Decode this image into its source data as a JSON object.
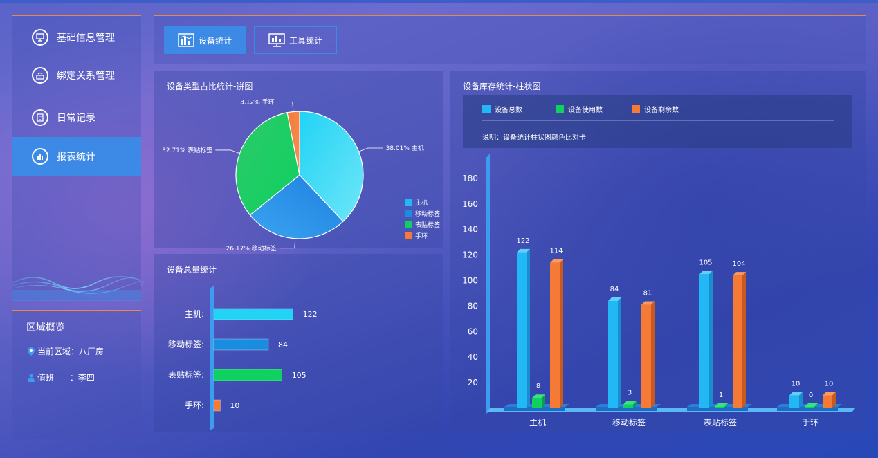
{
  "sidebar": {
    "items": [
      {
        "label": "基础信息管理",
        "icon": "monitor-icon"
      },
      {
        "label": "绑定关系管理",
        "icon": "router-icon"
      },
      {
        "label": "日常记录",
        "icon": "document-icon"
      },
      {
        "label": "报表统计",
        "icon": "bar-chart-icon",
        "active": true
      }
    ]
  },
  "region": {
    "title": "区域概览",
    "current_area": "当前区域：八厂房",
    "duty": "值班      ：李四"
  },
  "toolbar": {
    "device_stats": "设备统计",
    "tool_stats": "工具统计"
  },
  "colors": {
    "accent": "#3d8ae6",
    "cyan": "#22d3f5",
    "blue": "#1b8de0",
    "green": "#0fd160",
    "orange": "#f47a35"
  },
  "pie": {
    "title": "设备类型占比统计-饼图",
    "legend": [
      "主机",
      "移动标签",
      "表贴标签",
      "手环"
    ]
  },
  "hbar": {
    "title": "设备总量统计",
    "labels": [
      "主机:",
      "移动标签:",
      "表贴标签:",
      "手环:"
    ]
  },
  "vbar": {
    "title": "设备库存统计-柱状图",
    "legend": [
      "设备总数",
      "设备使用数",
      "设备剩余数"
    ],
    "note": "说明：设备统计柱状图颜色比对卡"
  },
  "chart_data": [
    {
      "type": "pie",
      "title": "设备类型占比统计-饼图",
      "categories": [
        "主机",
        "移动标签",
        "表贴标签",
        "手环"
      ],
      "values": [
        38.01,
        26.17,
        32.71,
        3.12
      ],
      "labels": [
        "38.01% 主机",
        "26.17% 移动标签",
        "32.71% 表贴标签",
        "3.12% 手环"
      ],
      "legend_position": "bottom-right"
    },
    {
      "type": "bar",
      "orientation": "horizontal",
      "title": "设备总量统计",
      "categories": [
        "主机",
        "移动标签",
        "表贴标签",
        "手环"
      ],
      "values": [
        122,
        84,
        105,
        10
      ]
    },
    {
      "type": "bar",
      "title": "设备库存统计-柱状图",
      "categories": [
        "主机",
        "移动标签",
        "表贴标签",
        "手环"
      ],
      "series": [
        {
          "name": "设备总数",
          "values": [
            122,
            84,
            105,
            10
          ]
        },
        {
          "name": "设备使用数",
          "values": [
            8,
            3,
            1,
            0
          ]
        },
        {
          "name": "设备剩余数",
          "values": [
            114,
            81,
            104,
            10
          ]
        }
      ],
      "yticks": [
        20,
        40,
        60,
        80,
        100,
        120,
        140,
        160,
        180
      ],
      "ylim": [
        0,
        190
      ]
    }
  ]
}
